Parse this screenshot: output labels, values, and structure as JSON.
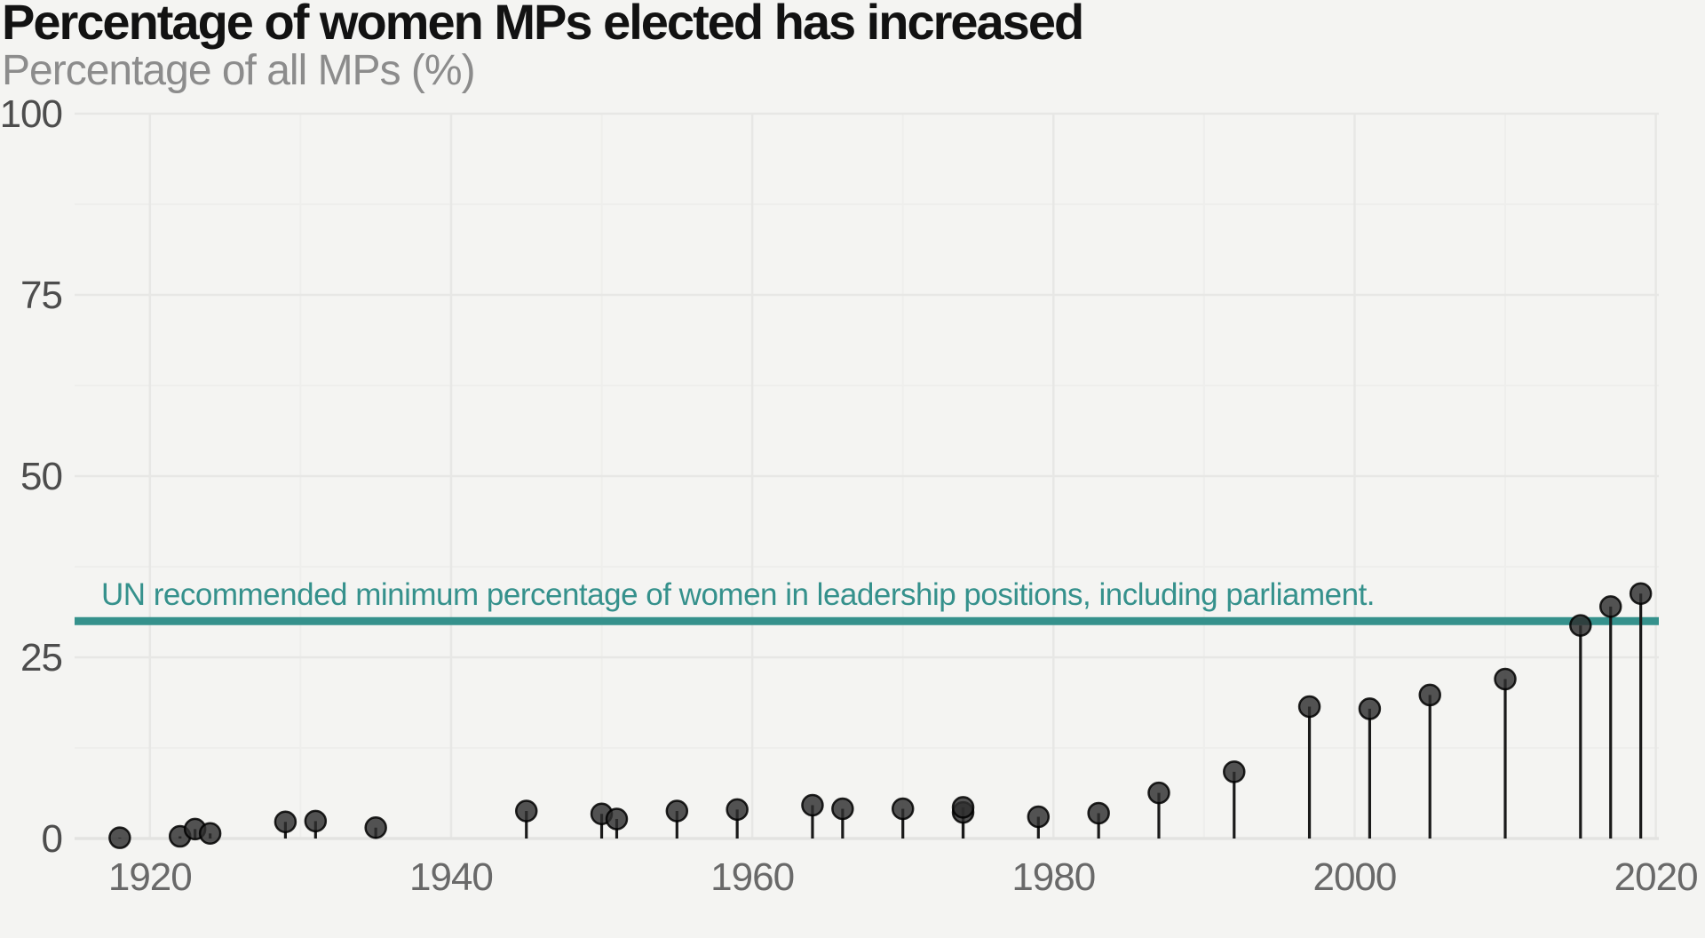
{
  "header": {
    "title": "Percentage of women MPs elected has increased",
    "subtitle": "Percentage of all MPs (%)"
  },
  "annotation": {
    "text": "UN recommended minimum percentage of women in leadership positions, including parliament.",
    "value": 30
  },
  "colors": {
    "background": "#f4f4f2",
    "grid_major": "#e7e7e5",
    "grid_minor": "#eeeeec",
    "axis_line": "#e3e3e1",
    "point_fill": "#2e2e2e",
    "point_stroke": "#000000",
    "stem": "#1a1a1a",
    "reference_teal": "#35918c",
    "title_text": "#121212",
    "subtitle_text": "#8c8c8c",
    "x_tick_text": "#696969",
    "y_tick_text": "#4d4d4d"
  },
  "chart_data": {
    "type": "scatter",
    "variant": "lollipop",
    "title": "Percentage of women MPs elected has increased",
    "subtitle": "Percentage of all MPs (%)",
    "xlabel": "",
    "ylabel": "Percentage of all MPs (%)",
    "xlim": [
      1915,
      2020.2
    ],
    "ylim": [
      0,
      100
    ],
    "x_ticks": [
      1920,
      1940,
      1960,
      1980,
      2000,
      2020
    ],
    "x_minor_ticks": [
      1930,
      1950,
      1970,
      1990,
      2010
    ],
    "y_ticks": [
      0,
      25,
      50,
      75,
      100
    ],
    "y_minor_ticks": [
      12.5,
      37.5,
      62.5,
      87.5
    ],
    "grid": true,
    "legend": "none",
    "reference_line": {
      "y": 30,
      "label": "UN recommended minimum percentage of women in leadership positions, including parliament."
    },
    "x": [
      1918,
      1922,
      1923,
      1924,
      1929,
      1931,
      1935,
      1945,
      1950,
      1951,
      1955,
      1959,
      1964,
      1966,
      1970,
      1974,
      1974,
      1979,
      1983,
      1987,
      1992,
      1997,
      2001,
      2005,
      2010,
      2015,
      2017,
      2019
    ],
    "y": [
      0.1,
      0.3,
      1.3,
      0.7,
      2.3,
      2.4,
      1.5,
      3.8,
      3.4,
      2.7,
      3.8,
      4.0,
      4.6,
      4.1,
      4.1,
      3.6,
      4.3,
      3.0,
      3.5,
      6.3,
      9.2,
      18.2,
      17.9,
      19.8,
      22.0,
      29.4,
      32.0,
      33.8
    ]
  }
}
